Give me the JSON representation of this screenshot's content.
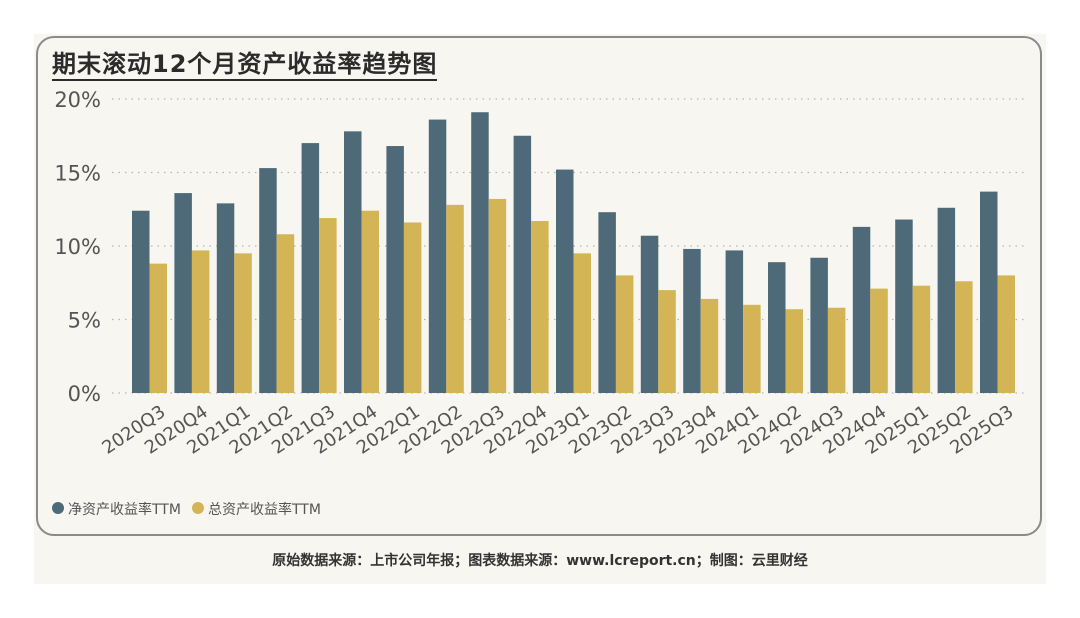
{
  "chart_data": {
    "type": "bar",
    "title": "期末滚动12个月资产收益率趋势图",
    "categories": [
      "2020Q3",
      "2020Q4",
      "2021Q1",
      "2021Q2",
      "2021Q3",
      "2021Q4",
      "2022Q1",
      "2022Q2",
      "2022Q3",
      "2022Q4",
      "2023Q1",
      "2023Q2",
      "2023Q3",
      "2023Q4",
      "2024Q1",
      "2024Q2",
      "2024Q3",
      "2024Q4",
      "2025Q1",
      "2025Q2",
      "2025Q3"
    ],
    "series": [
      {
        "name": "净资产收益率TTM",
        "color": "#4e6a78",
        "values": [
          12.4,
          13.6,
          12.9,
          15.3,
          17.0,
          17.8,
          16.8,
          18.6,
          19.1,
          17.5,
          15.2,
          12.3,
          10.7,
          9.8,
          9.7,
          8.9,
          9.2,
          11.3,
          11.8,
          12.6,
          13.7
        ]
      },
      {
        "name": "总资产收益率TTM",
        "color": "#d4b556",
        "values": [
          8.8,
          9.7,
          9.5,
          10.8,
          11.9,
          12.4,
          11.6,
          12.8,
          13.2,
          11.7,
          9.5,
          8.0,
          7.0,
          6.4,
          6.0,
          5.7,
          5.8,
          7.1,
          7.3,
          7.6,
          8.0
        ]
      }
    ],
    "yticks": [
      "0%",
      "5%",
      "10%",
      "15%",
      "20%"
    ],
    "ylim": [
      0,
      20
    ],
    "ytick_values": [
      0,
      5,
      10,
      15,
      20
    ],
    "grid": true,
    "legend_position": "bottom-left"
  },
  "footer": {
    "source": "原始数据来源：上市公司年报；图表数据来源：www.lcreport.cn；制图：云里财经"
  }
}
